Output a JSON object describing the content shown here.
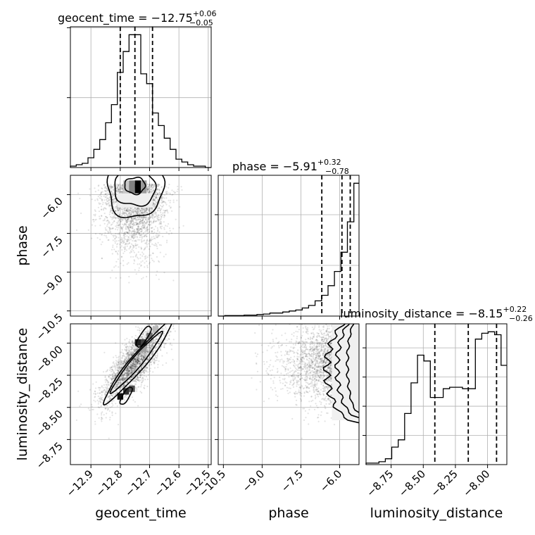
{
  "chart_data": {
    "type": "corner",
    "parameters": [
      "geocent_time",
      "phase",
      "luminosity_distance"
    ],
    "titles": [
      {
        "param": "geocent_time",
        "prefix": "geocent_time = ",
        "median": "−12.75",
        "upper": "+0.06",
        "lower": "−0.05"
      },
      {
        "param": "phase",
        "prefix": "phase = ",
        "median": "−5.91",
        "upper": "+0.32",
        "lower": "−0.78"
      },
      {
        "param": "luminosity_distance",
        "prefix": "luminosity_distance = ",
        "median": "−8.15",
        "upper": "+0.22",
        "lower": "−0.26"
      }
    ],
    "axis_labels": {
      "x": [
        "geocent_time",
        "phase",
        "luminosity_distance"
      ],
      "y_phase": "phase",
      "y_luminosity_distance": "luminosity_distance"
    },
    "ranges": {
      "geocent_time": [
        -12.97,
        -12.49
      ],
      "phase": [
        -10.7,
        -5.25
      ],
      "luminosity_distance": [
        -8.945,
        -7.85
      ]
    },
    "ticks": {
      "geocent_time": {
        "values": [
          -12.9,
          -12.8,
          -12.7,
          -12.6,
          -12.5
        ],
        "labels": [
          "−12.9",
          "−12.8",
          "−12.7",
          "−12.6",
          "−12.5"
        ]
      },
      "phase": {
        "values": [
          -10.5,
          -9.0,
          -7.5,
          -6.0
        ],
        "labels": [
          "−10.5",
          "−9.0",
          "−7.5",
          "−6.0"
        ]
      },
      "luminosity_distance": {
        "values": [
          -8.75,
          -8.5,
          -8.25,
          -8.0
        ],
        "labels": [
          "−8.75",
          "−8.50",
          "−8.25",
          "−8.00"
        ]
      }
    },
    "quantiles": {
      "geocent_time": [
        -12.8,
        -12.75,
        -12.69
      ],
      "phase": [
        -6.69,
        -5.91,
        -5.59
      ],
      "luminosity_distance": [
        -8.41,
        -8.15,
        -7.93
      ]
    },
    "histograms": {
      "geocent_time": {
        "edges": [
          -12.97,
          -12.95,
          -12.93,
          -12.91,
          -12.89,
          -12.87,
          -12.85,
          -12.83,
          -12.81,
          -12.79,
          -12.77,
          -12.75,
          -12.73,
          -12.71,
          -12.69,
          -12.67,
          -12.65,
          -12.63,
          -12.61,
          -12.59,
          -12.57,
          -12.55,
          -12.53,
          -12.51,
          -12.49
        ],
        "counts": [
          1,
          2,
          3,
          7,
          13,
          20,
          32,
          45,
          68,
          83,
          95,
          95,
          67,
          60,
          39,
          30,
          21,
          13,
          6,
          4,
          2,
          1,
          1,
          0
        ]
      },
      "phase": {
        "edges": [
          -10.7,
          -10.45,
          -10.2,
          -9.95,
          -9.7,
          -9.45,
          -9.2,
          -8.95,
          -8.7,
          -8.45,
          -8.2,
          -7.95,
          -7.7,
          -7.45,
          -7.2,
          -6.95,
          -6.7,
          -6.45,
          -6.2,
          -5.95,
          -5.7,
          -5.45,
          -5.25
        ],
        "counts": [
          0,
          1,
          1,
          1,
          2,
          2,
          3,
          4,
          6,
          6,
          8,
          10,
          12,
          16,
          21,
          30,
          41,
          60,
          88,
          126,
          186,
          262
        ]
      },
      "luminosity_distance": {
        "edges": [
          -8.945,
          -8.895,
          -8.845,
          -8.795,
          -8.745,
          -8.695,
          -8.645,
          -8.595,
          -8.545,
          -8.495,
          -8.445,
          -8.395,
          -8.345,
          -8.295,
          -8.245,
          -8.195,
          -8.145,
          -8.095,
          -8.045,
          -7.995,
          -7.945,
          -7.895,
          -7.85
        ],
        "counts": [
          1,
          1,
          2,
          4,
          12,
          17,
          35,
          56,
          75,
          71,
          46,
          46,
          52,
          53,
          53,
          52,
          52,
          86,
          90,
          91,
          89,
          68
        ]
      }
    }
  }
}
